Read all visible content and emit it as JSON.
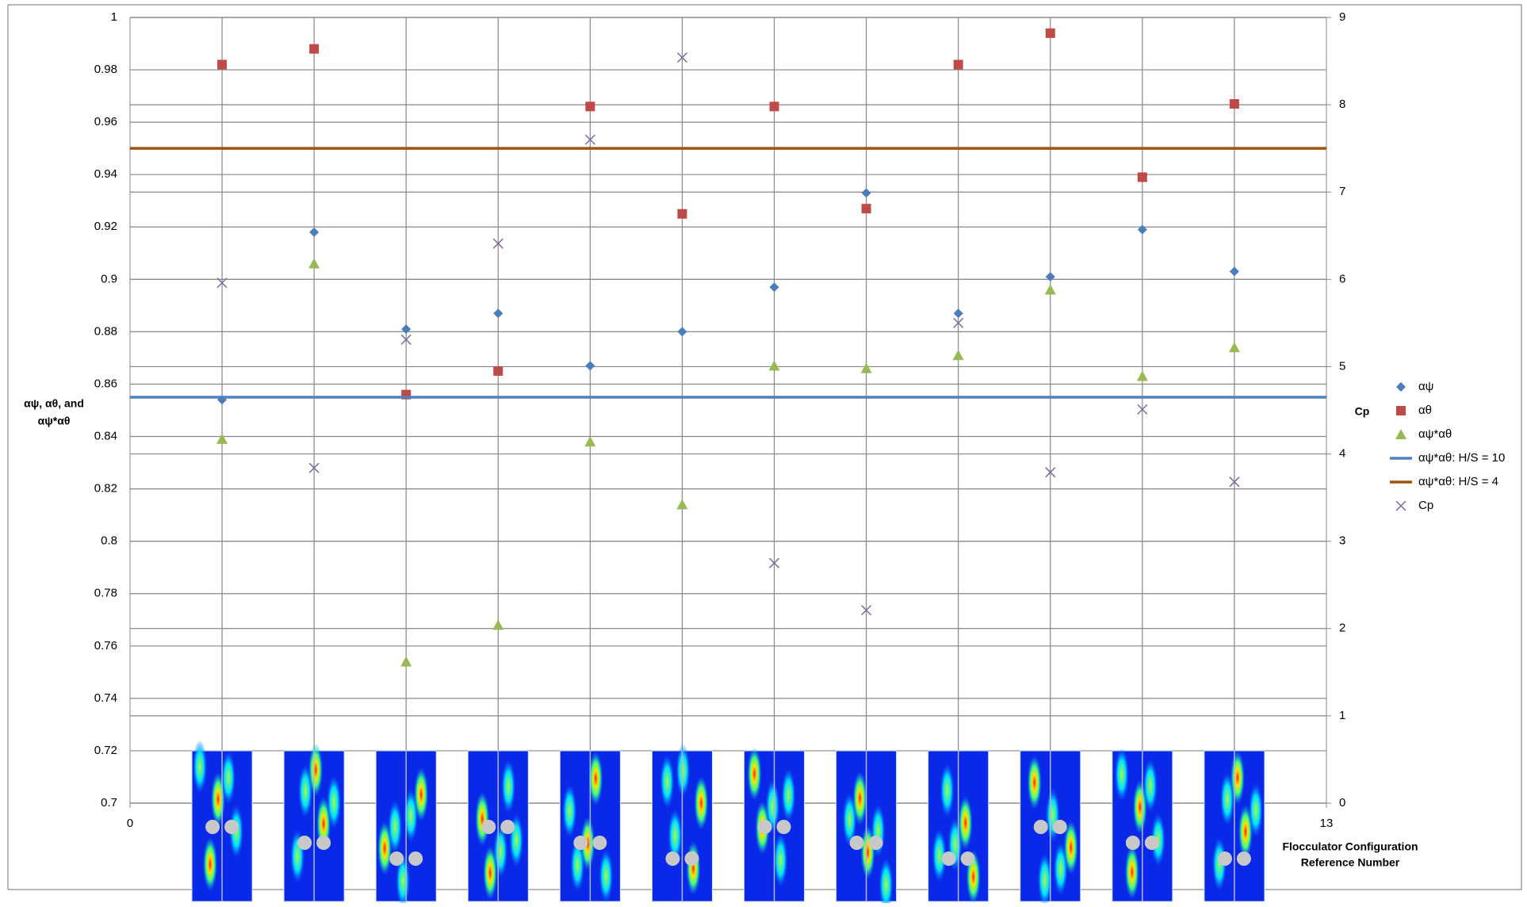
{
  "chart_data": {
    "type": "scatter",
    "y_label": [
      "αψ, αθ, and",
      "αψ*αθ"
    ],
    "y2_label": "Cp",
    "x_label": [
      "Flocculator Configuration",
      "Reference Number"
    ],
    "x": [
      1,
      2,
      3,
      4,
      5,
      6,
      7,
      8,
      9,
      10,
      11,
      12
    ],
    "xlim": [
      0,
      13
    ],
    "xticks": [
      0,
      13
    ],
    "ylim": [
      0.7,
      1
    ],
    "yticks": [
      0.7,
      0.72,
      0.74,
      0.76,
      0.78,
      0.8,
      0.82,
      0.84,
      0.86,
      0.88,
      0.9,
      0.92,
      0.94,
      0.96,
      0.98,
      1
    ],
    "y2lim": [
      0,
      9
    ],
    "y2ticks": [
      0,
      1,
      2,
      3,
      4,
      5,
      6,
      7,
      8,
      9
    ],
    "grid": true,
    "legend": "right",
    "series": [
      {
        "name": "αψ",
        "color": "#4a7ebb",
        "marker": "diamond",
        "values": [
          0.854,
          0.918,
          0.881,
          0.887,
          0.867,
          0.88,
          0.897,
          0.933,
          0.887,
          0.901,
          0.919,
          0.903
        ]
      },
      {
        "name": "αθ",
        "color": "#be4b48",
        "marker": "square",
        "values": [
          0.982,
          0.988,
          0.856,
          0.865,
          0.966,
          0.925,
          0.966,
          0.927,
          0.982,
          0.994,
          0.939,
          0.967
        ]
      },
      {
        "name": "αψ*αθ",
        "color": "#98b954",
        "marker": "triangle",
        "values": [
          0.839,
          0.906,
          0.754,
          0.768,
          0.838,
          0.814,
          0.867,
          0.866,
          0.871,
          0.896,
          0.863,
          0.874
        ]
      },
      {
        "name": "αψ*αθ: H/S = 10",
        "color": "#4f81bd",
        "marker": "line",
        "value": 0.855
      },
      {
        "name": "αψ*αθ: H/S = 4",
        "color": "#a0520f",
        "marker": "line",
        "value": 0.95
      },
      {
        "name": "Cp",
        "color": "#7f6a9f",
        "marker": "x",
        "axis": "y2",
        "values": [
          5.96,
          3.84,
          5.31,
          6.41,
          7.6,
          8.54,
          2.75,
          2.21,
          5.5,
          3.79,
          4.51,
          3.68
        ]
      }
    ]
  }
}
